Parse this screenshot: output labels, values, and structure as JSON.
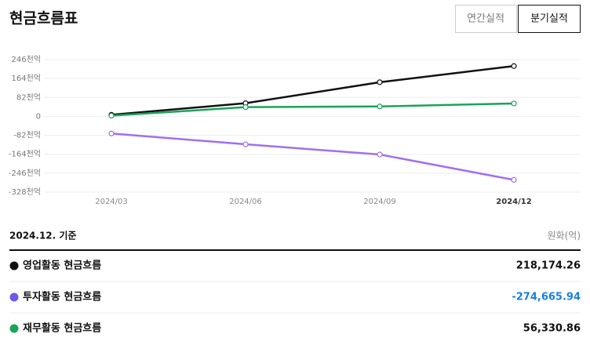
{
  "header": {
    "title": "현금흐름표",
    "tabs": [
      "연간실적",
      "분기실적"
    ]
  },
  "chart_data": {
    "type": "line",
    "categories": [
      "2024/03",
      "2024/06",
      "2024/09",
      "2024/12"
    ],
    "series": [
      {
        "color": "#111111",
        "values": [
          7,
          57,
          148,
          218
        ]
      },
      {
        "color": "#a070f0",
        "values": [
          -74,
          -121,
          -165,
          -275
        ]
      },
      {
        "color": "#1aa35a",
        "values": [
          3,
          40,
          43,
          56
        ]
      }
    ],
    "ylim": [
      -328,
      246
    ],
    "yticks": [
      {
        "value": -328,
        "label": "-328천억"
      },
      {
        "value": -246,
        "label": "-246천억"
      },
      {
        "value": -164,
        "label": "-164천억"
      },
      {
        "value": -82,
        "label": "-82천억"
      },
      0,
      {
        "value": 82,
        "label": "82천억"
      },
      {
        "value": 164,
        "label": "164천억"
      },
      {
        "value": 246,
        "label": "246천억"
      }
    ],
    "grid": true
  },
  "table": {
    "basis": "2024.12. 기준",
    "unit": "원화(억)",
    "rows": [
      {
        "name": "영업활동 현금흐름",
        "value": "218,174.26",
        "color": "#111111",
        "value_color": "#111111"
      },
      {
        "name": "투자활동 현금흐름",
        "value": "-274,665.94",
        "color": "#6f55e8",
        "value_color": "#1a7fe0"
      },
      {
        "name": "재무활동 현금흐름",
        "value": "56,330.86",
        "color": "#1aa35a",
        "value_color": "#111111"
      }
    ]
  }
}
